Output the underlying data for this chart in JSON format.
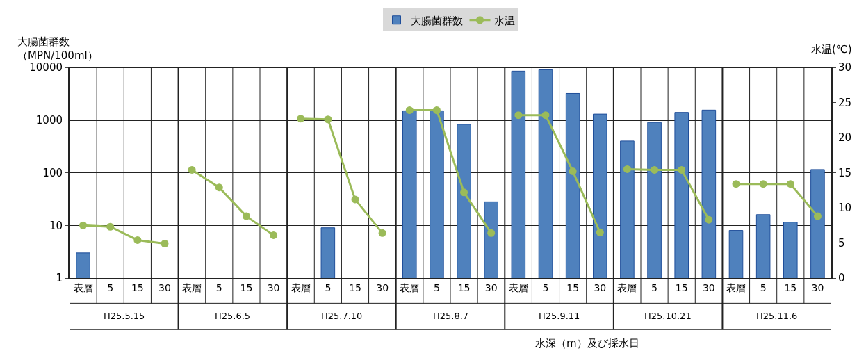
{
  "chart_data": {
    "type": "bar",
    "ylabel": "大腸菌群数（MPN/100ml）",
    "y2label": "水温(℃)",
    "xlabel": "水深（m）及び採水日",
    "categories": [
      "表層",
      "5",
      "15",
      "30",
      "表層",
      "5",
      "15",
      "30",
      "表層",
      "5",
      "15",
      "30",
      "表層",
      "5",
      "15",
      "30",
      "表層",
      "5",
      "15",
      "30",
      "表層",
      "5",
      "15",
      "30",
      "表層",
      "5",
      "15",
      "30"
    ],
    "annotations": [
      "H25.5.15",
      "H25.6.5",
      "H25.7.10",
      "H25.8.7",
      "H25.9.11",
      "H25.10.21",
      "H25.11.6"
    ],
    "series": [
      {
        "name": "大腸菌群数",
        "color": "#4f81bd",
        "values": [
          3,
          null,
          null,
          null,
          null,
          null,
          null,
          null,
          null,
          9,
          null,
          null,
          1500,
          1500,
          830,
          28,
          8500,
          9000,
          3200,
          1300,
          400,
          900,
          1400,
          1550,
          8,
          16,
          11.5,
          115
        ]
      },
      {
        "name": "水温",
        "type": "line",
        "axis": "y2",
        "color": "#9bbb59",
        "values": [
          7.5,
          7.3,
          5.4,
          4.9,
          null,
          null,
          null,
          null,
          null,
          null,
          null,
          null,
          null,
          null,
          null,
          null,
          null,
          null,
          null,
          null,
          null,
          null,
          null,
          null,
          null,
          null,
          null,
          null
        ]
      },
      {
        "type": "line",
        "axis": "y2",
        "color": "#9bbb59",
        "values": [
          null,
          null,
          null,
          null,
          15.4,
          12.9,
          8.8,
          6.1,
          null,
          null,
          null,
          null,
          null,
          null,
          null,
          null,
          null,
          null,
          null,
          null,
          null,
          null,
          null,
          null,
          null,
          null,
          null,
          null
        ]
      },
      {
        "type": "line",
        "axis": "y2",
        "color": "#9bbb59",
        "values": [
          null,
          null,
          null,
          null,
          null,
          null,
          null,
          null,
          22.7,
          22.6,
          11.2,
          6.4,
          null,
          null,
          null,
          null,
          null,
          null,
          null,
          null,
          null,
          null,
          null,
          null,
          null,
          null,
          null,
          null
        ]
      },
      {
        "type": "line",
        "axis": "y2",
        "color": "#9bbb59",
        "values": [
          null,
          null,
          null,
          null,
          null,
          null,
          null,
          null,
          null,
          null,
          null,
          null,
          23.9,
          23.9,
          12.2,
          6.4,
          null,
          null,
          null,
          null,
          null,
          null,
          null,
          null,
          null,
          null,
          null,
          null
        ]
      },
      {
        "type": "line",
        "axis": "y2",
        "color": "#9bbb59",
        "values": [
          null,
          null,
          null,
          null,
          null,
          null,
          null,
          null,
          null,
          null,
          null,
          null,
          null,
          null,
          null,
          null,
          23.2,
          23.2,
          15.2,
          6.5,
          null,
          null,
          null,
          null,
          null,
          null,
          null,
          null
        ]
      },
      {
        "type": "line",
        "axis": "y2",
        "color": "#9bbb59",
        "values": [
          null,
          null,
          null,
          null,
          null,
          null,
          null,
          null,
          null,
          null,
          null,
          null,
          null,
          null,
          null,
          null,
          null,
          null,
          null,
          null,
          15.5,
          15.4,
          15.4,
          8.3,
          null,
          null,
          null,
          null
        ]
      },
      {
        "type": "line",
        "axis": "y2",
        "color": "#9bbb59",
        "values": [
          null,
          null,
          null,
          null,
          null,
          null,
          null,
          null,
          null,
          null,
          null,
          null,
          null,
          null,
          null,
          null,
          null,
          null,
          null,
          null,
          null,
          null,
          null,
          null,
          13.4,
          13.4,
          13.4,
          8.8
        ]
      }
    ],
    "log": true,
    "ylim": [
      1,
      10000
    ],
    "yticks": [
      1,
      10,
      100,
      1000,
      10000
    ],
    "y2lim": [
      0,
      30
    ],
    "y2ticks": [
      0,
      5,
      10,
      15,
      20,
      25,
      30
    ],
    "grid": true,
    "legend": "top",
    "marker": "circle"
  }
}
